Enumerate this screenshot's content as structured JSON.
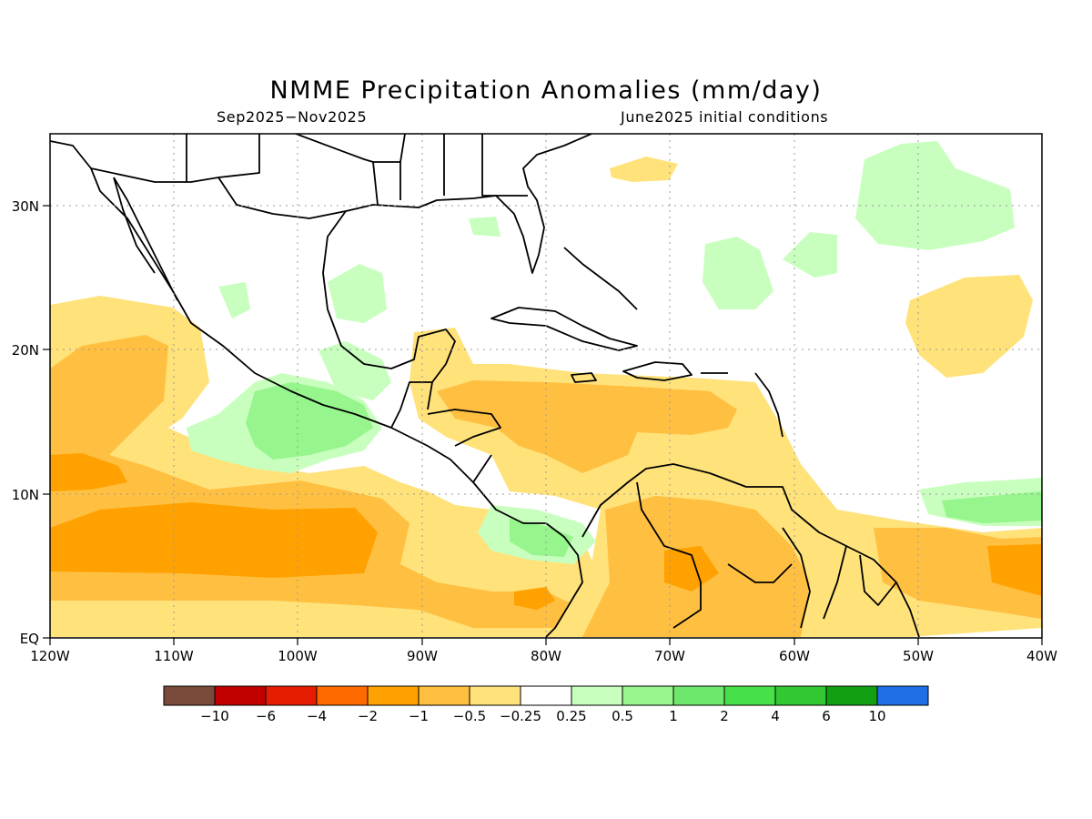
{
  "title": "NMME Precipitation Anomalies (mm/day)",
  "period": "Sep2025−Nov2025",
  "initial_conditions": "June2025 initial conditions",
  "map": {
    "lat_labels": [
      "EQ",
      "10N",
      "20N",
      "30N"
    ],
    "lon_labels": [
      "120W",
      "110W",
      "100W",
      "90W",
      "80W",
      "70W",
      "60W",
      "50W",
      "40W"
    ],
    "lat_range": [
      0,
      35
    ],
    "lon_range": [
      -120,
      -40
    ],
    "grid": "dotted"
  },
  "colorbar": {
    "colors": [
      "#7a4a3a",
      "#c20000",
      "#e61c00",
      "#ff6a00",
      "#ffa100",
      "#ffbf40",
      "#ffe27a",
      "#ffffff",
      "#c8ffbe",
      "#96f58c",
      "#6ee86c",
      "#48e048",
      "#32c832",
      "#12a012",
      "#1e6ee6"
    ],
    "labels": [
      "−10",
      "−6",
      "−4",
      "−2",
      "−1",
      "−0.5",
      "−0.25",
      "0.25",
      "0.5",
      "1",
      "2",
      "4",
      "6",
      "10"
    ]
  }
}
